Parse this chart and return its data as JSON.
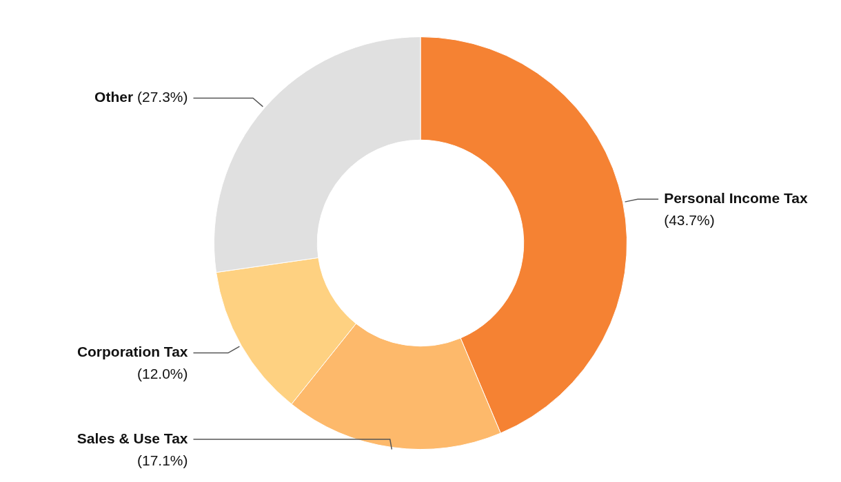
{
  "chart_data": {
    "type": "donut",
    "categories": [
      "Personal Income Tax",
      "Sales & Use Tax",
      "Corporation Tax",
      "Other"
    ],
    "values": [
      43.7,
      17.1,
      12.0,
      27.3
    ],
    "colors": [
      "#f58233",
      "#fdb96b",
      "#fed181",
      "#e0e0e0"
    ],
    "value_labels": [
      "(43.7%)",
      "(17.1%)",
      "(12.0%)",
      "(27.3%)"
    ],
    "legend": false
  }
}
